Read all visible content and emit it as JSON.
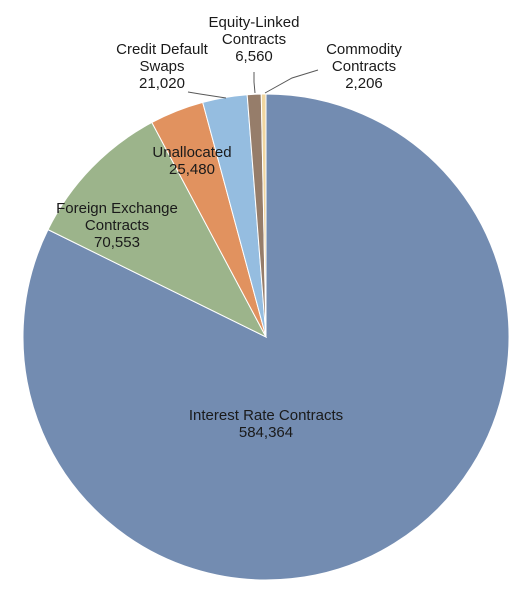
{
  "chart_data": {
    "type": "pie",
    "title": "",
    "start": "12 o'clock",
    "direction": "clockwise",
    "slices": [
      {
        "name_lines": [
          "Interest Rate Contracts"
        ],
        "value_label": "584,364",
        "value": 584364,
        "color": "#738cb1"
      },
      {
        "name_lines": [
          "Foreign Exchange",
          "Contracts"
        ],
        "value_label": "70,553",
        "value": 70553,
        "color": "#9cb48b"
      },
      {
        "name_lines": [
          "Unallocated"
        ],
        "value_label": "25,480",
        "value": 25480,
        "color": "#e1925f"
      },
      {
        "name_lines": [
          "Credit Default",
          "Swaps"
        ],
        "value_label": "21,020",
        "value": 21020,
        "color": "#95bde0"
      },
      {
        "name_lines": [
          "Equity-Linked",
          "Contracts"
        ],
        "value_label": "6,560",
        "value": 6560,
        "color": "#967d6a"
      },
      {
        "name_lines": [
          "Commodity",
          "Contracts"
        ],
        "value_label": "2,206",
        "value": 2206,
        "color": "#f0d6a0"
      }
    ]
  }
}
